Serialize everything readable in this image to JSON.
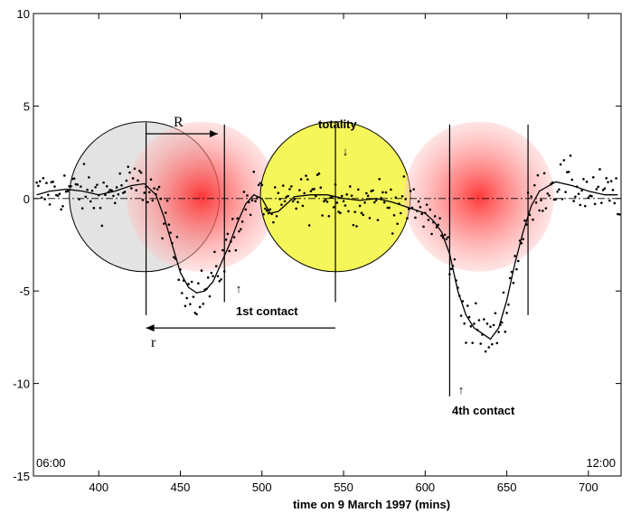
{
  "chart_data": {
    "type": "scatter",
    "title": "",
    "xlabel": "time on 9 March 1997 (mins)",
    "ylabel": "",
    "xlim": [
      360,
      720
    ],
    "ylim": [
      -15,
      10
    ],
    "x_ticks": [
      400,
      450,
      500,
      550,
      600,
      650,
      700
    ],
    "y_ticks": [
      10,
      5,
      0,
      -5,
      -10,
      -15
    ],
    "grid": false,
    "corner_labels": {
      "left": "06:00",
      "right": "12:00"
    },
    "annotations": {
      "totality": "totality",
      "first_contact": "1st contact",
      "fourth_contact": "4th contact",
      "R": "R",
      "r": "r",
      "up_arrow": "↑",
      "down_arrow": "↓"
    },
    "vertical_markers": [
      {
        "x": 429,
        "y_range": [
          -6.3,
          4.1
        ]
      },
      {
        "x": 477,
        "y_range": [
          -5.6,
          4.0
        ]
      },
      {
        "x": 545,
        "y_range": [
          -5.6,
          4.0
        ]
      },
      {
        "x": 615,
        "y_range": [
          -10.7,
          4.0
        ]
      },
      {
        "x": 663,
        "y_range": [
          -6.3,
          4.0
        ]
      }
    ],
    "disks": [
      {
        "name": "grey-disk",
        "cx": 428,
        "cy": 0.1,
        "r": 46,
        "color": "#e3e3e3"
      },
      {
        "name": "red-disk-1",
        "cx": 463,
        "cy": 0.1,
        "r": 46,
        "color": "#ff5a5a"
      },
      {
        "name": "yellow-disk",
        "cx": 545,
        "cy": 0.1,
        "r": 46,
        "color": "#f4f65a"
      },
      {
        "name": "red-disk-2",
        "cx": 633,
        "cy": 0.1,
        "r": 46,
        "color": "#ff5a5a"
      }
    ],
    "arrows": [
      {
        "name": "R-arrow",
        "x1": 429,
        "x2": 473,
        "y": 3.5
      },
      {
        "name": "r-arrow",
        "x1": 545,
        "x2": 429,
        "y": -7.0
      }
    ],
    "smoothed_curve": {
      "x": [
        362,
        370,
        380,
        390,
        400,
        410,
        420,
        428,
        435,
        440,
        445,
        450,
        455,
        460,
        465,
        470,
        475,
        480,
        485,
        490,
        495,
        500,
        505,
        510,
        520,
        530,
        540,
        550,
        560,
        570,
        580,
        590,
        600,
        605,
        610,
        615,
        620,
        625,
        630,
        635,
        640,
        645,
        650,
        655,
        660,
        665,
        670,
        680,
        690,
        700,
        710,
        718
      ],
      "y": [
        0.2,
        0.4,
        0.5,
        0.4,
        0.2,
        0.4,
        0.7,
        0.8,
        0.2,
        -1.0,
        -2.5,
        -4.0,
        -4.8,
        -5.1,
        -5.0,
        -4.5,
        -3.5,
        -2.5,
        -1.3,
        -0.3,
        0.2,
        0.0,
        -0.8,
        -0.7,
        0.1,
        0.2,
        0.2,
        0.0,
        -0.1,
        0.0,
        -0.2,
        -0.5,
        -0.8,
        -1.2,
        -1.8,
        -3.0,
        -5.0,
        -6.3,
        -7.0,
        -7.3,
        -7.6,
        -7.0,
        -5.5,
        -3.5,
        -1.8,
        -0.4,
        0.4,
        0.9,
        0.7,
        0.4,
        0.2,
        0.2
      ]
    },
    "scatter_noise": 1.1,
    "scatter_points_per_min": 1
  }
}
